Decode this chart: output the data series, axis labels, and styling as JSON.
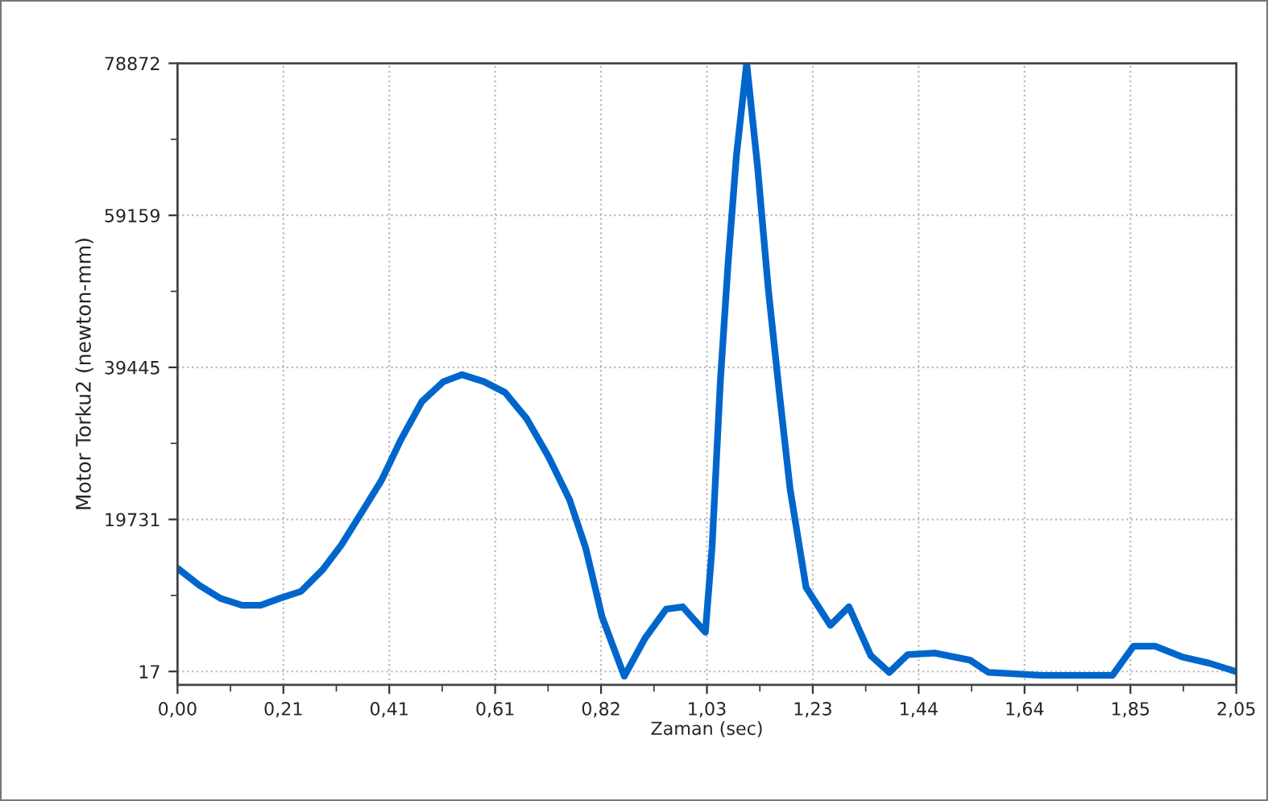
{
  "chart_data": {
    "type": "line",
    "xlabel": "Zaman (sec)",
    "ylabel": "Motor Torku2 (newton-mm)",
    "x": [
      0,
      0.042,
      0.083,
      0.125,
      0.161,
      0.198,
      0.239,
      0.281,
      0.317,
      0.359,
      0.395,
      0.432,
      0.473,
      0.515,
      0.551,
      0.593,
      0.634,
      0.676,
      0.718,
      0.759,
      0.79,
      0.822,
      0.865,
      0.905,
      0.946,
      0.978,
      1.022,
      1.035,
      1.051,
      1.066,
      1.082,
      1.102,
      1.123,
      1.144,
      1.165,
      1.186,
      1.217,
      1.264,
      1.3,
      1.342,
      1.378,
      1.414,
      1.466,
      1.534,
      1.57,
      1.675,
      1.81,
      1.851,
      1.893,
      1.945,
      1.997,
      2.049
    ],
    "series": [
      {
        "color": "#0066cc",
        "values": [
          13400,
          11200,
          9500,
          8600,
          8600,
          9500,
          10400,
          13200,
          16400,
          20900,
          24800,
          30000,
          35000,
          37600,
          38500,
          37600,
          36200,
          32800,
          27900,
          22300,
          16100,
          7100,
          -600,
          4300,
          8100,
          8400,
          5100,
          16100,
          37600,
          52900,
          66800,
          78872,
          65500,
          49500,
          36300,
          23700,
          10900,
          6000,
          8400,
          2100,
          -100,
          2200,
          2400,
          1500,
          -100,
          -500,
          -500,
          3300,
          3300,
          1900,
          1100,
          17
        ]
      }
    ],
    "xlim": [
      0,
      2.05
    ],
    "ylim": [
      -1720,
      78872
    ],
    "xticks": [
      {
        "value": 0,
        "label": "0,00"
      },
      {
        "value": 0.1025,
        "label": null
      },
      {
        "value": 0.205,
        "label": "0,21"
      },
      {
        "value": 0.3075,
        "label": null
      },
      {
        "value": 0.41,
        "label": "0,41"
      },
      {
        "value": 0.5125,
        "label": null
      },
      {
        "value": 0.615,
        "label": "0,61"
      },
      {
        "value": 0.7175,
        "label": null
      },
      {
        "value": 0.82,
        "label": "0,82"
      },
      {
        "value": 0.9225,
        "label": null
      },
      {
        "value": 1.025,
        "label": "1,03"
      },
      {
        "value": 1.1275,
        "label": null
      },
      {
        "value": 1.23,
        "label": "1,23"
      },
      {
        "value": 1.3325,
        "label": null
      },
      {
        "value": 1.435,
        "label": "1,44"
      },
      {
        "value": 1.5375,
        "label": null
      },
      {
        "value": 1.64,
        "label": "1,64"
      },
      {
        "value": 1.7425,
        "label": null
      },
      {
        "value": 1.845,
        "label": "1,85"
      },
      {
        "value": 1.9475,
        "label": null
      },
      {
        "value": 2.05,
        "label": "2,05"
      }
    ],
    "yticks": [
      17,
      {
        "value": 9874,
        "label": null
      },
      19731,
      {
        "value": 29588,
        "label": null
      },
      39445,
      {
        "value": 49302,
        "label": null
      },
      59159,
      {
        "value": 69016,
        "label": null
      },
      78872
    ],
    "grid": true,
    "marker": "none",
    "line_style": "solid"
  }
}
